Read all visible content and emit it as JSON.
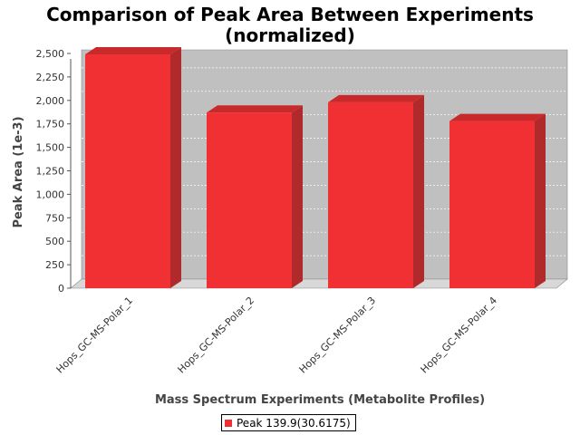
{
  "chart_data": {
    "type": "bar",
    "title_line1": "Comparison of Peak Area Between Experiments",
    "title_line2": "(normalized)",
    "xlabel": "Mass Spectrum Experiments (Metabolite Profiles)",
    "ylabel": "Peak Area (1e-3)",
    "categories": [
      "Hops_GC-MS-Polar_1",
      "Hops_GC-MS-Polar_2",
      "Hops_GC-MS-Polar_3",
      "Hops_GC-MS-Polar_4"
    ],
    "series": [
      {
        "name": "Peak 139.9(30.6175)",
        "values": [
          2490,
          1870,
          1980,
          1780
        ]
      }
    ],
    "ylim": [
      0,
      2500
    ],
    "yticks": [
      0,
      250,
      500,
      750,
      1000,
      1250,
      1500,
      1750,
      2000,
      2250,
      2500
    ],
    "ytick_labels": [
      "0",
      "250",
      "500",
      "750",
      "1,000",
      "1,250",
      "1,500",
      "1,750",
      "2,000",
      "2,250",
      "2,500"
    ],
    "grid": true,
    "legend_position": "bottom",
    "colors": {
      "bar_front": "#f03033",
      "bar_top": "#c82a2c",
      "bar_side": "#b02a2c",
      "plot_back": "#c0c0c0",
      "plot_floor": "#d8d8d8"
    }
  }
}
